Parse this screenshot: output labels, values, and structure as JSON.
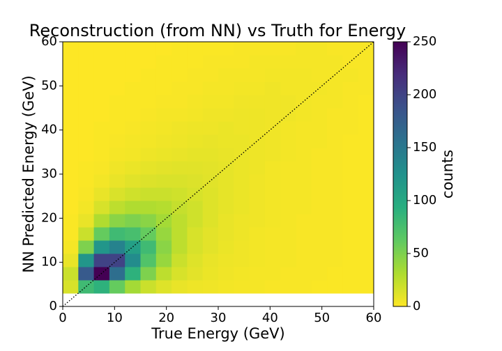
{
  "chart_data": {
    "type": "hist2d",
    "title": "Reconstruction (from NN) vs Truth for Energy",
    "x_label": "True Energy (GeV)",
    "y_label": "NN Predicted Energy (GeV)",
    "colorbar_label": "counts",
    "xlim": [
      0,
      60
    ],
    "ylim": [
      0,
      60
    ],
    "xticks": [
      0,
      10,
      20,
      30,
      40,
      50,
      60
    ],
    "yticks": [
      0,
      10,
      20,
      30,
      40,
      50,
      60
    ],
    "clim": [
      0,
      250
    ],
    "colorbar_ticks": [
      0,
      50,
      100,
      150,
      200,
      250
    ],
    "colors": [
      "#fde725",
      "#addc30",
      "#5ec962",
      "#28ae80",
      "#21918c",
      "#2c728e",
      "#3b528b",
      "#472d7b",
      "#440154"
    ],
    "identity_line": true,
    "xbins": [
      0,
      3,
      6,
      9,
      12,
      15,
      18,
      21,
      24,
      27,
      30,
      33,
      36,
      39,
      42,
      45,
      48,
      51,
      54,
      57,
      60
    ],
    "ybins": [
      3,
      6,
      9,
      12,
      15,
      18,
      21,
      24,
      27,
      30,
      33,
      36,
      39,
      42,
      45,
      48,
      51,
      54,
      57,
      60
    ],
    "counts": [
      [
        15,
        80,
        90,
        60,
        35,
        20,
        12,
        8,
        6,
        5,
        4,
        3,
        3,
        2,
        2,
        2,
        1,
        1,
        1,
        1
      ],
      [
        20,
        180,
        250,
        160,
        90,
        50,
        25,
        15,
        10,
        7,
        5,
        4,
        3,
        3,
        2,
        2,
        2,
        1,
        1,
        1
      ],
      [
        8,
        120,
        200,
        200,
        130,
        70,
        40,
        20,
        12,
        8,
        6,
        5,
        4,
        3,
        3,
        2,
        2,
        2,
        1,
        1
      ],
      [
        3,
        50,
        120,
        140,
        110,
        80,
        45,
        25,
        15,
        10,
        7,
        5,
        4,
        3,
        3,
        2,
        2,
        2,
        1,
        1
      ],
      [
        1,
        20,
        60,
        80,
        75,
        60,
        40,
        25,
        15,
        10,
        8,
        6,
        4,
        3,
        3,
        2,
        2,
        2,
        1,
        1
      ],
      [
        1,
        8,
        30,
        45,
        50,
        45,
        35,
        25,
        18,
        12,
        8,
        6,
        5,
        4,
        3,
        2,
        2,
        2,
        1,
        1
      ],
      [
        0,
        4,
        15,
        25,
        30,
        30,
        28,
        22,
        18,
        12,
        9,
        7,
        5,
        4,
        3,
        3,
        2,
        2,
        1,
        1
      ],
      [
        0,
        2,
        8,
        14,
        18,
        20,
        20,
        18,
        15,
        12,
        9,
        7,
        5,
        4,
        3,
        3,
        2,
        2,
        1,
        1
      ],
      [
        0,
        1,
        4,
        8,
        11,
        13,
        14,
        14,
        13,
        11,
        9,
        7,
        5,
        4,
        3,
        3,
        2,
        2,
        1,
        1
      ],
      [
        0,
        1,
        2,
        5,
        7,
        9,
        10,
        11,
        11,
        10,
        9,
        7,
        6,
        4,
        3,
        3,
        2,
        2,
        1,
        1
      ],
      [
        0,
        0,
        1,
        3,
        4,
        6,
        7,
        8,
        9,
        9,
        8,
        7,
        6,
        5,
        4,
        3,
        2,
        2,
        1,
        1
      ],
      [
        0,
        0,
        1,
        2,
        3,
        4,
        5,
        6,
        7,
        8,
        7,
        7,
        6,
        5,
        4,
        3,
        3,
        2,
        1,
        1
      ],
      [
        0,
        0,
        1,
        1,
        2,
        3,
        4,
        5,
        6,
        6,
        7,
        6,
        6,
        5,
        4,
        3,
        3,
        2,
        2,
        1
      ],
      [
        0,
        0,
        0,
        1,
        1,
        2,
        3,
        3,
        4,
        5,
        5,
        6,
        6,
        5,
        5,
        4,
        3,
        2,
        2,
        1
      ],
      [
        0,
        0,
        0,
        1,
        1,
        1,
        2,
        2,
        3,
        4,
        4,
        5,
        5,
        5,
        5,
        4,
        3,
        3,
        2,
        1
      ],
      [
        0,
        0,
        0,
        0,
        1,
        1,
        1,
        2,
        2,
        3,
        3,
        4,
        4,
        5,
        4,
        4,
        4,
        3,
        2,
        2
      ],
      [
        0,
        0,
        0,
        0,
        0,
        1,
        1,
        1,
        2,
        2,
        3,
        3,
        3,
        4,
        4,
        4,
        3,
        3,
        3,
        2
      ],
      [
        0,
        0,
        0,
        0,
        0,
        0,
        1,
        1,
        1,
        2,
        2,
        2,
        3,
        3,
        3,
        3,
        3,
        3,
        2,
        2
      ],
      [
        0,
        0,
        0,
        0,
        0,
        0,
        0,
        1,
        1,
        1,
        1,
        2,
        2,
        2,
        2,
        3,
        3,
        2,
        2,
        2
      ]
    ]
  }
}
